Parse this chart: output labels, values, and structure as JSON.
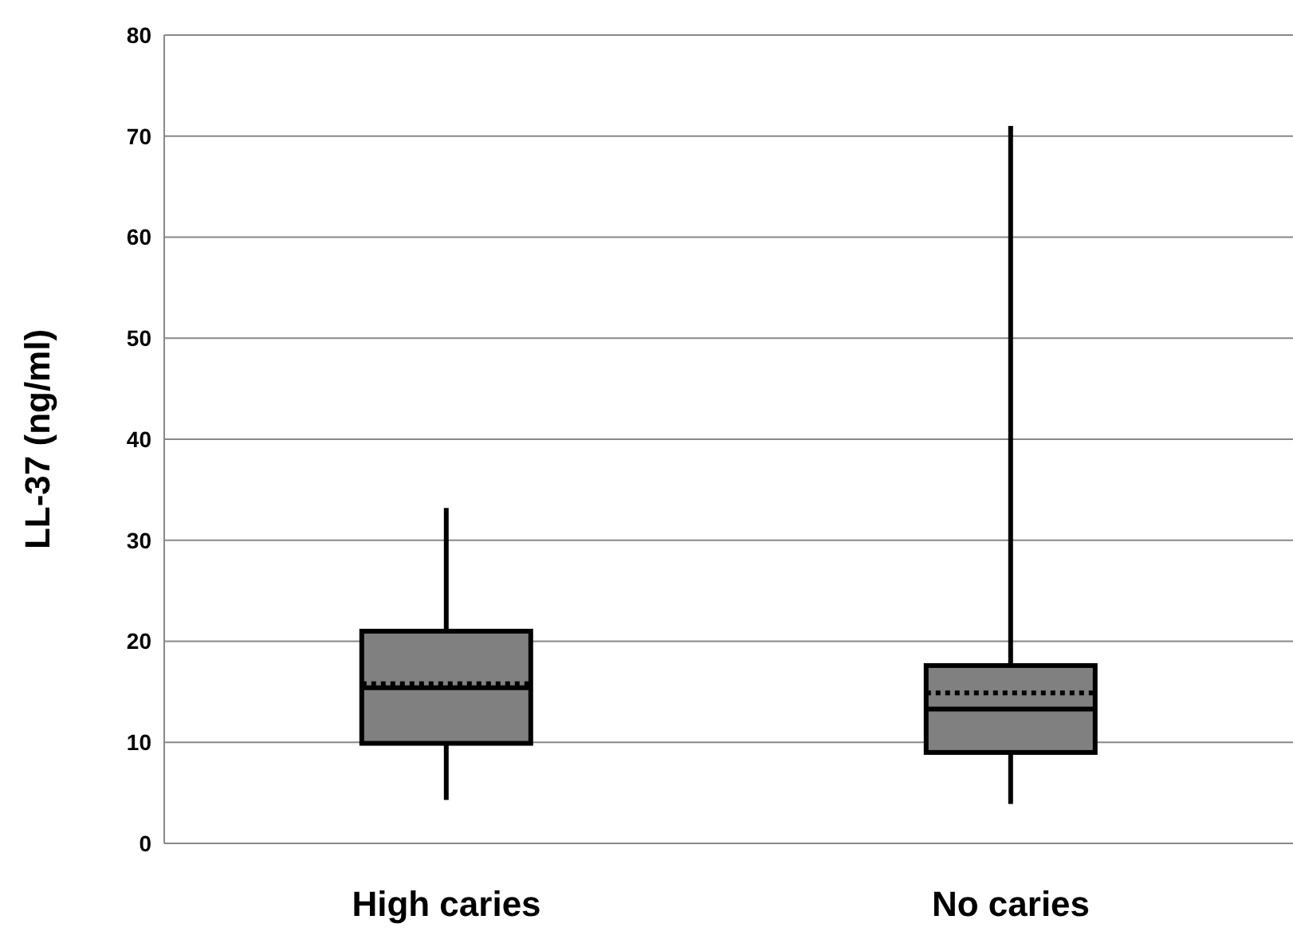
{
  "chart_data": {
    "type": "box",
    "ylabel": "LL-37 (ng/ml)",
    "categories": [
      "High caries",
      "No caries"
    ],
    "boxes": [
      {
        "low": 4.3,
        "q1": 9.9,
        "median": 15.4,
        "q3": 21.0,
        "high": 33.2,
        "mean": 15.8
      },
      {
        "low": 3.9,
        "q1": 9.0,
        "median": 13.3,
        "q3": 17.6,
        "high": 71.0,
        "mean": 14.9
      }
    ],
    "color": "#808080",
    "ylim": [
      0,
      80
    ],
    "yticks": [
      0,
      10,
      20,
      30,
      40,
      50,
      60,
      70,
      80
    ],
    "grid": "y"
  }
}
